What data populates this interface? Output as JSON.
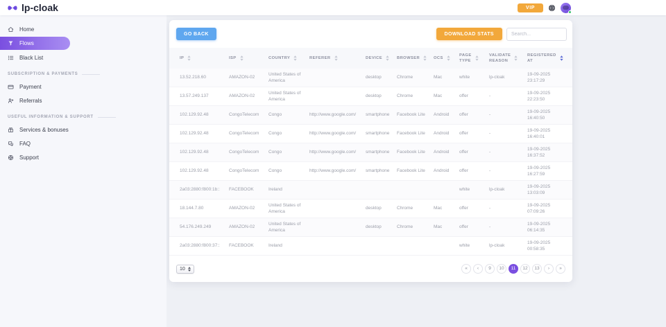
{
  "app": {
    "logo_text": "lp-cloak",
    "vip_label": "VIP"
  },
  "sidebar": {
    "main_items": [
      {
        "label": "Home",
        "icon": "home-icon",
        "active": false
      },
      {
        "label": "Flows",
        "icon": "flows-icon",
        "active": true
      },
      {
        "label": "Black List",
        "icon": "blacklist-icon",
        "active": false
      }
    ],
    "sections": [
      {
        "title": "SUBSCRIPTION & PAYMENTS",
        "items": [
          {
            "label": "Payment",
            "icon": "payment-icon"
          },
          {
            "label": "Referrals",
            "icon": "referrals-icon"
          }
        ]
      },
      {
        "title": "USEFUL INFORMATION & SUPPORT",
        "items": [
          {
            "label": "Services & bonuses",
            "icon": "services-icon"
          },
          {
            "label": "FAQ",
            "icon": "faq-icon"
          },
          {
            "label": "Support",
            "icon": "support-icon"
          }
        ]
      }
    ]
  },
  "page": {
    "title": "Flows"
  },
  "toolbar": {
    "go_back_label": "GO BACK",
    "download_stats_label": "DOWNLOAD STATS",
    "search_placeholder": "Search..."
  },
  "table": {
    "columns": [
      {
        "label": "IP",
        "sorted": false
      },
      {
        "label": "ISP",
        "sorted": false
      },
      {
        "label": "Country",
        "sorted": false
      },
      {
        "label": "Referer",
        "sorted": false
      },
      {
        "label": "Device",
        "sorted": false
      },
      {
        "label": "Browser",
        "sorted": false
      },
      {
        "label": "OCS",
        "sorted": false
      },
      {
        "label": "Page Type",
        "sorted": false
      },
      {
        "label": "Validate Reason",
        "sorted": false
      },
      {
        "label": "Registered At",
        "sorted": true
      }
    ],
    "rows": [
      {
        "ip": "13.52.218.60",
        "isp": "AMAZON-02",
        "country": "United States of America",
        "referer": "",
        "device": "desktop",
        "browser": "Chrome",
        "ocs": "Mac",
        "page_type": "white",
        "validate_reason": "lp-cloak",
        "registered_at": "19-09-2025 23:17:29"
      },
      {
        "ip": "13.57.249.137",
        "isp": "AMAZON-02",
        "country": "United States of America",
        "referer": "",
        "device": "desktop",
        "browser": "Chrome",
        "ocs": "Mac",
        "page_type": "offer",
        "validate_reason": "-",
        "registered_at": "19-09-2025 22:23:50"
      },
      {
        "ip": "102.129.92.48",
        "isp": "CongoTelecom",
        "country": "Congo",
        "referer": "http://www.google.com/",
        "device": "smartphone",
        "browser": "Facebook Lite",
        "ocs": "Android",
        "page_type": "offer",
        "validate_reason": "-",
        "registered_at": "19-09-2025 16:40:50"
      },
      {
        "ip": "102.129.92.48",
        "isp": "CongoTelecom",
        "country": "Congo",
        "referer": "http://www.google.com/",
        "device": "smartphone",
        "browser": "Facebook Lite",
        "ocs": "Android",
        "page_type": "offer",
        "validate_reason": "-",
        "registered_at": "19-09-2025 16:40:01"
      },
      {
        "ip": "102.129.92.48",
        "isp": "CongoTelecom",
        "country": "Congo",
        "referer": "http://www.google.com/",
        "device": "smartphone",
        "browser": "Facebook Lite",
        "ocs": "Android",
        "page_type": "offer",
        "validate_reason": "-",
        "registered_at": "19-09-2025 16:37:52"
      },
      {
        "ip": "102.129.92.48",
        "isp": "CongoTelecom",
        "country": "Congo",
        "referer": "http://www.google.com/",
        "device": "smartphone",
        "browser": "Facebook Lite",
        "ocs": "Android",
        "page_type": "offer",
        "validate_reason": "-",
        "registered_at": "19-09-2025 16:27:59"
      },
      {
        "ip": "2a03:2880:f800:1b::",
        "isp": "FACEBOOK",
        "country": "Ireland",
        "referer": "",
        "device": "",
        "browser": "",
        "ocs": "",
        "page_type": "white",
        "validate_reason": "lp-cloak",
        "registered_at": "19-09-2025 13:03:09"
      },
      {
        "ip": "18.144.7.80",
        "isp": "AMAZON-02",
        "country": "United States of America",
        "referer": "",
        "device": "desktop",
        "browser": "Chrome",
        "ocs": "Mac",
        "page_type": "offer",
        "validate_reason": "-",
        "registered_at": "19-09-2025 07:09:26"
      },
      {
        "ip": "54.176.249.249",
        "isp": "AMAZON-02",
        "country": "United States of America",
        "referer": "",
        "device": "desktop",
        "browser": "Chrome",
        "ocs": "Mac",
        "page_type": "offer",
        "validate_reason": "-",
        "registered_at": "19-09-2025 06:14:35"
      },
      {
        "ip": "2a03:2880:f800:37::",
        "isp": "FACEBOOK",
        "country": "Ireland",
        "referer": "",
        "device": "",
        "browser": "",
        "ocs": "",
        "page_type": "white",
        "validate_reason": "lp-cloak",
        "registered_at": "19-09-2025 00:58:35"
      }
    ]
  },
  "footer": {
    "page_size": "10",
    "pagination": [
      {
        "label": "«",
        "name": "first"
      },
      {
        "label": "‹",
        "name": "prev"
      },
      {
        "label": "9"
      },
      {
        "label": "10"
      },
      {
        "label": "11",
        "active": true
      },
      {
        "label": "12"
      },
      {
        "label": "13"
      },
      {
        "label": "›",
        "name": "next"
      },
      {
        "label": "»",
        "name": "last"
      }
    ]
  },
  "colors": {
    "accent_purple": "#7a4fe0",
    "accent_orange": "#f2a83b",
    "accent_blue": "#5fa7ef",
    "pagination_active": "#7a4fe0",
    "sorted_indicator": "#5b6bd5",
    "online_green": "#39c16c"
  }
}
